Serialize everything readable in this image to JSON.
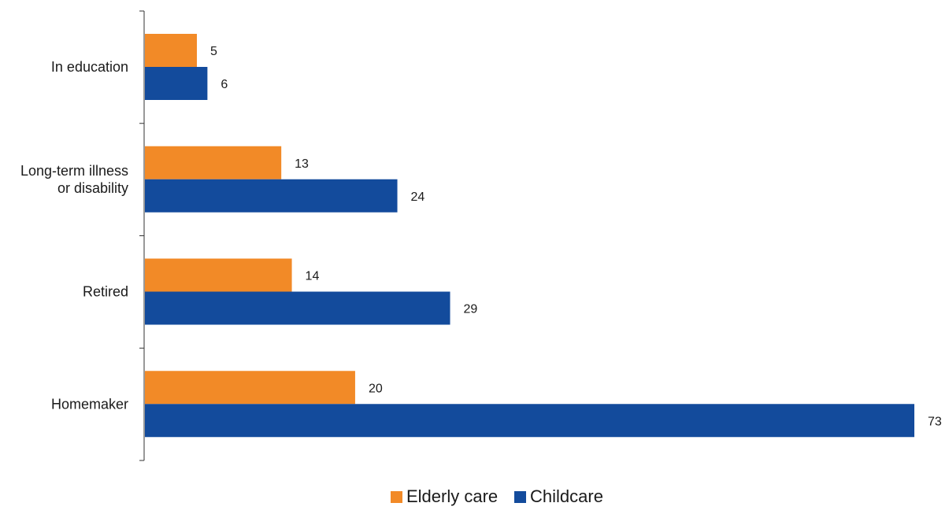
{
  "chart_data": {
    "type": "bar",
    "orientation": "horizontal",
    "title": "",
    "xlabel": "",
    "ylabel": "",
    "categories": [
      [
        "In education"
      ],
      [
        "Long-term illness",
        "or disability"
      ],
      [
        "Retired"
      ],
      [
        "Homemaker"
      ]
    ],
    "series": [
      {
        "name": "Elderly care",
        "color": "#F28A27",
        "values": [
          5,
          13,
          14,
          20
        ]
      },
      {
        "name": "Childcare",
        "color": "#134B9C",
        "values": [
          6,
          24,
          29,
          73
        ]
      }
    ],
    "xlim": [
      0,
      73
    ],
    "grid": false,
    "legend_position": "bottom-center",
    "data_labels": true
  }
}
